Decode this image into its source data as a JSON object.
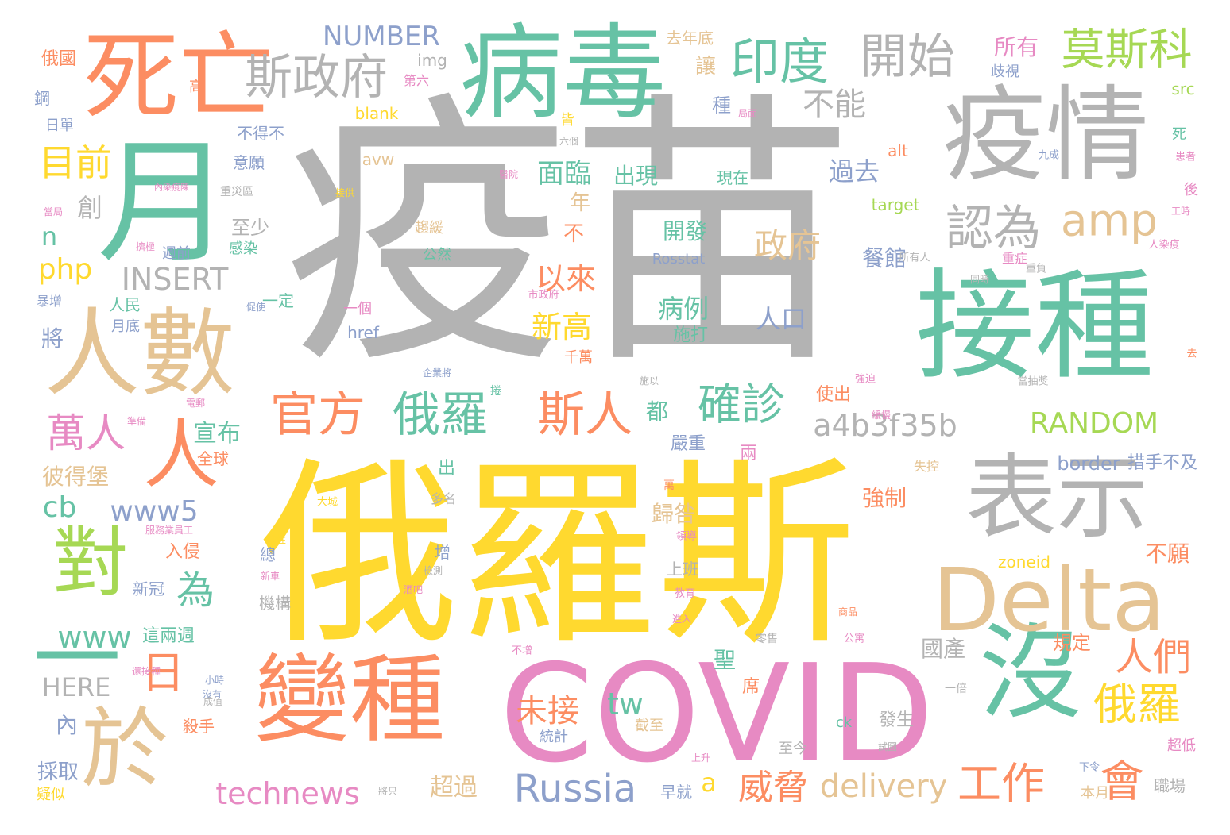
{
  "colors": {
    "gray": "#b3b3b3",
    "yellow": "#ffd92f",
    "green": "#66c2a5",
    "orange": "#fc8d62",
    "tan": "#e5c494",
    "pink": "#e78ac3",
    "blue": "#8da0cb",
    "lime": "#a6d854"
  },
  "words": [
    {
      "text": "疫苗",
      "color": "gray",
      "weight": 1.0
    },
    {
      "text": "俄羅斯",
      "color": "yellow",
      "weight": 0.92
    },
    {
      "text": "COVID",
      "color": "pink",
      "weight": 0.66
    },
    {
      "text": "接種",
      "color": "green",
      "weight": 0.58
    },
    {
      "text": "疫情",
      "color": "gray",
      "weight": 0.52
    },
    {
      "text": "月",
      "color": "green",
      "weight": 0.5
    },
    {
      "text": "病毒",
      "color": "green",
      "weight": 0.46
    },
    {
      "text": "死亡",
      "color": "orange",
      "weight": 0.45
    },
    {
      "text": "人數",
      "color": "tan",
      "weight": 0.45
    },
    {
      "text": "變種",
      "color": "orange",
      "weight": 0.43
    },
    {
      "text": "表示",
      "color": "gray",
      "weight": 0.42
    },
    {
      "text": "沒",
      "color": "green",
      "weight": 0.4
    },
    {
      "text": "Delta",
      "color": "tan",
      "weight": 0.38
    },
    {
      "text": "於",
      "color": "tan",
      "weight": 0.36
    },
    {
      "text": "對",
      "color": "lime",
      "weight": 0.3
    },
    {
      "text": "人",
      "color": "orange",
      "weight": 0.3
    },
    {
      "text": "一",
      "color": "green",
      "weight": 0.28
    },
    {
      "text": "斯政府",
      "color": "gray",
      "weight": 0.22
    },
    {
      "text": "印度",
      "color": "green",
      "weight": 0.2
    },
    {
      "text": "開始",
      "color": "gray",
      "weight": 0.2
    },
    {
      "text": "莫斯科",
      "color": "lime",
      "weight": 0.19
    },
    {
      "text": "認為",
      "color": "gray",
      "weight": 0.19
    },
    {
      "text": "amp",
      "color": "tan",
      "weight": 0.18
    },
    {
      "text": "官方",
      "color": "orange",
      "weight": 0.18
    },
    {
      "text": "俄羅",
      "color": "green",
      "weight": 0.18
    },
    {
      "text": "斯人",
      "color": "orange",
      "weight": 0.18
    },
    {
      "text": "確診",
      "color": "green",
      "weight": 0.17
    },
    {
      "text": "萬人",
      "color": "pink",
      "weight": 0.16
    },
    {
      "text": "日",
      "color": "orange",
      "weight": 0.17
    },
    {
      "text": "會",
      "color": "orange",
      "weight": 0.17
    },
    {
      "text": "俄羅",
      "color": "yellow",
      "weight": 0.17
    },
    {
      "text": "工作",
      "color": "orange",
      "weight": 0.16
    },
    {
      "text": "人們",
      "color": "orange",
      "weight": 0.15
    },
    {
      "text": "Russia",
      "color": "blue",
      "weight": 0.16
    },
    {
      "text": "a4b3f35b",
      "color": "gray",
      "weight": 0.12
    },
    {
      "text": "RANDOM",
      "color": "lime",
      "weight": 0.12
    },
    {
      "text": "政府",
      "color": "tan",
      "weight": 0.13
    },
    {
      "text": "目前",
      "color": "yellow",
      "weight": 0.13
    },
    {
      "text": "不能",
      "color": "gray",
      "weight": 0.12
    },
    {
      "text": "為",
      "color": "green",
      "weight": 0.14
    },
    {
      "text": "未接",
      "color": "orange",
      "weight": 0.12
    },
    {
      "text": "威脅",
      "color": "orange",
      "weight": 0.13
    },
    {
      "text": "delivery",
      "color": "tan",
      "weight": 0.12
    },
    {
      "text": "technews",
      "color": "pink",
      "weight": 0.11
    },
    {
      "text": "INSERT",
      "color": "gray",
      "weight": 0.11
    },
    {
      "text": "NUMBER",
      "color": "blue",
      "weight": 0.1
    },
    {
      "text": "www5",
      "color": "blue",
      "weight": 0.1
    },
    {
      "text": "www",
      "color": "green",
      "weight": 0.11
    },
    {
      "text": "HERE",
      "color": "gray",
      "weight": 0.09
    },
    {
      "text": "php",
      "color": "yellow",
      "weight": 0.1
    },
    {
      "text": "tw",
      "color": "green",
      "weight": 0.1
    },
    {
      "text": "cb",
      "color": "green",
      "weight": 0.1
    },
    {
      "text": "面臨",
      "color": "green",
      "weight": 0.1
    },
    {
      "text": "過去",
      "color": "blue",
      "weight": 0.09
    },
    {
      "text": "新高",
      "color": "yellow",
      "weight": 0.1
    },
    {
      "text": "以來",
      "color": "orange",
      "weight": 0.1
    },
    {
      "text": "病例",
      "color": "green",
      "weight": 0.09
    },
    {
      "text": "人口",
      "color": "blue",
      "weight": 0.09
    },
    {
      "text": "開發",
      "color": "green",
      "weight": 0.08
    },
    {
      "text": "施打",
      "color": "green",
      "weight": 0.06
    },
    {
      "text": "出現",
      "color": "green",
      "weight": 0.08
    },
    {
      "text": "宣布",
      "color": "green",
      "weight": 0.08
    },
    {
      "text": "創",
      "color": "gray",
      "weight": 0.08
    },
    {
      "text": "n",
      "color": "green",
      "weight": 0.08
    },
    {
      "text": "a",
      "color": "yellow",
      "weight": 0.08
    },
    {
      "text": "都",
      "color": "green",
      "weight": 0.07
    },
    {
      "text": "超過",
      "color": "tan",
      "weight": 0.08
    },
    {
      "text": "國產",
      "color": "gray",
      "weight": 0.07
    },
    {
      "text": "強制",
      "color": "orange",
      "weight": 0.07
    },
    {
      "text": "歸咎",
      "color": "tan",
      "weight": 0.07
    },
    {
      "text": "聖",
      "color": "green",
      "weight": 0.06
    },
    {
      "text": "餐館",
      "color": "blue",
      "weight": 0.07
    },
    {
      "text": "彼得堡",
      "color": "tan",
      "weight": 0.06
    },
    {
      "text": "至少",
      "color": "gray",
      "weight": 0.06
    },
    {
      "text": "border",
      "color": "blue",
      "weight": 0.05
    },
    {
      "text": "措手不及",
      "color": "blue",
      "weight": 0.05
    },
    {
      "text": "所有",
      "color": "pink",
      "weight": 0.06
    },
    {
      "text": "讓",
      "color": "tan",
      "weight": 0.06
    },
    {
      "text": "不願",
      "color": "orange",
      "weight": 0.06
    },
    {
      "text": "規定",
      "color": "orange",
      "weight": 0.05
    },
    {
      "text": "採取",
      "color": "blue",
      "weight": 0.05
    },
    {
      "text": "內",
      "color": "blue",
      "weight": 0.06
    },
    {
      "text": "將",
      "color": "blue",
      "weight": 0.06
    },
    {
      "text": "不",
      "color": "orange",
      "weight": 0.06
    },
    {
      "text": "年",
      "color": "tan",
      "weight": 0.06
    },
    {
      "text": "種",
      "color": "blue",
      "weight": 0.05
    },
    {
      "text": "使出",
      "color": "orange",
      "weight": 0.05
    },
    {
      "text": "兩",
      "color": "pink",
      "weight": 0.05
    },
    {
      "text": "殺手",
      "color": "orange",
      "weight": 0.04
    },
    {
      "text": "發生",
      "color": "gray",
      "weight": 0.04
    },
    {
      "text": "超低",
      "color": "pink",
      "weight": 0.03
    },
    {
      "text": "職場",
      "color": "gray",
      "weight": 0.04
    },
    {
      "text": "本月",
      "color": "tan",
      "weight": 0.04
    },
    {
      "text": "早就",
      "color": "blue",
      "weight": 0.04
    },
    {
      "text": "截至",
      "color": "tan",
      "weight": 0.04
    },
    {
      "text": "至今",
      "color": "gray",
      "weight": 0.04
    },
    {
      "text": "統計",
      "color": "blue",
      "weight": 0.04
    },
    {
      "text": "席",
      "color": "orange",
      "weight": 0.04
    },
    {
      "text": "嚴重",
      "color": "blue",
      "weight": 0.04
    },
    {
      "text": "全球",
      "color": "orange",
      "weight": 0.04
    },
    {
      "text": "出",
      "color": "green",
      "weight": 0.04
    },
    {
      "text": "上班",
      "color": "gray",
      "weight": 0.04
    },
    {
      "text": "入侵",
      "color": "orange",
      "weight": 0.04
    },
    {
      "text": "新冠",
      "color": "blue",
      "weight": 0.04
    },
    {
      "text": "這兩週",
      "color": "green",
      "weight": 0.04
    },
    {
      "text": "機構",
      "color": "gray",
      "weight": 0.04
    },
    {
      "text": "總",
      "color": "blue",
      "weight": 0.04
    },
    {
      "text": "增",
      "color": "blue",
      "weight": 0.04
    },
    {
      "text": "一定",
      "color": "green",
      "weight": 0.04
    },
    {
      "text": "人民",
      "color": "green",
      "weight": 0.04
    },
    {
      "text": "月底",
      "color": "blue",
      "weight": 0.04
    },
    {
      "text": "暴增",
      "color": "blue",
      "weight": 0.03
    },
    {
      "text": "一個",
      "color": "pink",
      "weight": 0.04
    },
    {
      "text": "千萬",
      "color": "orange",
      "weight": 0.04
    },
    {
      "text": "公然",
      "color": "green",
      "weight": 0.04
    },
    {
      "text": "趨緩",
      "color": "tan",
      "weight": 0.04
    },
    {
      "text": "現在",
      "color": "green",
      "weight": 0.04
    },
    {
      "text": "感染",
      "color": "green",
      "weight": 0.04
    },
    {
      "text": "週前",
      "color": "blue",
      "weight": 0.04
    },
    {
      "text": "意願",
      "color": "blue",
      "weight": 0.04
    },
    {
      "text": "不得不",
      "color": "blue",
      "weight": 0.04
    },
    {
      "text": "日單",
      "color": "blue",
      "weight": 0.04
    },
    {
      "text": "鋼",
      "color": "blue",
      "weight": 0.04
    },
    {
      "text": "高",
      "color": "orange",
      "weight": 0.04
    },
    {
      "text": "第六",
      "color": "pink",
      "weight": 0.035
    },
    {
      "text": "img",
      "color": "gray",
      "weight": 0.04
    },
    {
      "text": "俄國",
      "color": "orange",
      "weight": 0.045
    },
    {
      "text": "去年底",
      "color": "tan",
      "weight": 0.04
    },
    {
      "text": "blank",
      "color": "yellow",
      "weight": 0.04
    },
    {
      "text": "avw",
      "color": "tan",
      "weight": 0.04
    },
    {
      "text": "皆",
      "color": "yellow",
      "weight": 0.035
    },
    {
      "text": "Rosstat",
      "color": "blue",
      "weight": 0.035
    },
    {
      "text": "href",
      "color": "blue",
      "weight": 0.04
    },
    {
      "text": "target",
      "color": "lime",
      "weight": 0.04
    },
    {
      "text": "alt",
      "color": "orange",
      "weight": 0.04
    },
    {
      "text": "src",
      "color": "lime",
      "weight": 0.04
    },
    {
      "text": "死",
      "color": "green",
      "weight": 0.035
    },
    {
      "text": "九成",
      "color": "blue",
      "weight": 0.025
    },
    {
      "text": "後",
      "color": "pink",
      "weight": 0.04
    },
    {
      "text": "歧視",
      "color": "blue",
      "weight": 0.035
    },
    {
      "text": "重症",
      "color": "pink",
      "weight": 0.03
    },
    {
      "text": "zoneid",
      "color": "yellow",
      "weight": 0.035
    },
    {
      "text": "ck",
      "color": "green",
      "weight": 0.035
    },
    {
      "text": "一倍",
      "color": "gray",
      "weight": 0.03
    },
    {
      "text": "失控",
      "color": "tan",
      "weight": 0.03
    },
    {
      "text": "零售",
      "color": "gray",
      "weight": 0.03
    },
    {
      "text": "公寓",
      "color": "pink",
      "weight": 0.025
    },
    {
      "text": "商品",
      "color": "orange",
      "weight": 0.025
    },
    {
      "text": "多名",
      "color": "gray",
      "weight": 0.03
    },
    {
      "text": "大城",
      "color": "yellow",
      "weight": 0.025
    },
    {
      "text": "疑似",
      "color": "yellow",
      "weight": 0.035
    },
    {
      "text": "將只",
      "color": "gray",
      "weight": 0.02
    },
    {
      "text": "小時",
      "color": "blue",
      "weight": 0.02
    },
    {
      "text": "沒有",
      "color": "blue",
      "weight": 0.02
    },
    {
      "text": "上升",
      "color": "pink",
      "weight": 0.02
    },
    {
      "text": "下令",
      "color": "blue",
      "weight": 0.025
    },
    {
      "text": "萬",
      "color": "orange",
      "weight": 0.025
    },
    {
      "text": "去",
      "color": "orange",
      "weight": 0.02
    },
    {
      "text": "不增",
      "color": "pink",
      "weight": 0.02
    },
    {
      "text": "強迫",
      "color": "pink",
      "weight": 0.02
    },
    {
      "text": "同時",
      "color": "gray",
      "weight": 0.02
    },
    {
      "text": "所有人",
      "color": "gray",
      "weight": 0.02
    },
    {
      "text": "重負",
      "color": "gray",
      "weight": 0.02
    },
    {
      "text": "人染疫",
      "color": "pink",
      "weight": 0.02
    },
    {
      "text": "工時",
      "color": "pink",
      "weight": 0.02
    },
    {
      "text": "患者",
      "color": "pink",
      "weight": 0.02
    },
    {
      "text": "當抽獎",
      "color": "gray",
      "weight": 0.02
    },
    {
      "text": "企業將",
      "color": "blue",
      "weight": 0.02
    },
    {
      "text": "施以",
      "color": "gray",
      "weight": 0.02
    },
    {
      "text": "市政府",
      "color": "pink",
      "weight": 0.02
    },
    {
      "text": "六個",
      "color": "gray",
      "weight": 0.02
    },
    {
      "text": "醫院",
      "color": "pink",
      "weight": 0.02
    },
    {
      "text": "接供",
      "color": "yellow",
      "weight": 0.02
    },
    {
      "text": "重災區",
      "color": "gray",
      "weight": 0.02
    },
    {
      "text": "內染疫陳",
      "color": "pink",
      "weight": 0.02
    },
    {
      "text": "當局",
      "color": "pink",
      "weight": 0.02
    },
    {
      "text": "電郵",
      "color": "pink",
      "weight": 0.02
    },
    {
      "text": "準備",
      "color": "pink",
      "weight": 0.02
    },
    {
      "text": "服務業員工",
      "color": "pink",
      "weight": 0.02
    },
    {
      "text": "陰性",
      "color": "yellow",
      "weight": 0.02
    },
    {
      "text": "還接種",
      "color": "pink",
      "weight": 0.02
    },
    {
      "text": "教育",
      "color": "pink",
      "weight": 0.02
    },
    {
      "text": "領導",
      "color": "pink",
      "weight": 0.02
    },
    {
      "text": "新車",
      "color": "pink",
      "weight": 0.02
    },
    {
      "text": "捲",
      "color": "green",
      "weight": 0.025
    },
    {
      "text": "進入",
      "color": "pink",
      "weight": 0.02
    },
    {
      "text": "酒吧",
      "color": "pink",
      "weight": 0.02
    },
    {
      "text": "檢測",
      "color": "gray",
      "weight": 0.02
    },
    {
      "text": "試圖",
      "color": "gray",
      "weight": 0.02
    },
    {
      "text": "成值",
      "color": "gray",
      "weight": 0.02
    },
    {
      "text": "緩慢",
      "color": "pink",
      "weight": 0.02
    },
    {
      "text": "促使",
      "color": "blue",
      "weight": 0.02
    },
    {
      "text": "擠極",
      "color": "pink",
      "weight": 0.02
    },
    {
      "text": "局面",
      "color": "pink",
      "weight": 0.02
    }
  ]
}
